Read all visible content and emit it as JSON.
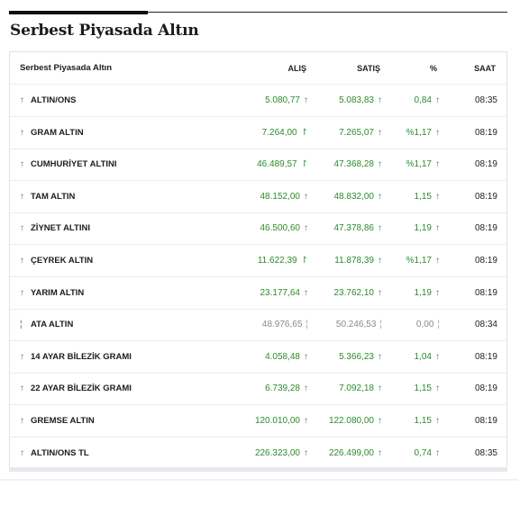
{
  "section": {
    "title": "Serbest Piyasada Altın"
  },
  "table": {
    "headers": {
      "name": "Serbest Piyasada Altın",
      "buy": "ALIŞ",
      "sell": "SATIŞ",
      "pct": "%",
      "time": "SAAT"
    },
    "rows": [
      {
        "name": "ALTIN/ONS",
        "buy": "5.080,77",
        "sell": "5.083,83",
        "pct": "0,84",
        "time": "08:35",
        "trend": "up",
        "trend_icon": "arrow-up-icon",
        "buy_icon": "arrow-up-icon"
      },
      {
        "name": "GRAM ALTIN",
        "buy": "7.264,00",
        "sell": "7.265,07",
        "pct": "%1,17",
        "time": "08:19",
        "trend": "up",
        "trend_icon": "arrow-up-icon",
        "buy_icon": "thin-arrow-up-icon"
      },
      {
        "name": "CUMHURİYET ALTINI",
        "buy": "46.489,57",
        "sell": "47.368,28",
        "pct": "%1,17",
        "time": "08:19",
        "trend": "up",
        "trend_icon": "arrow-up-icon",
        "buy_icon": "thin-arrow-up-icon"
      },
      {
        "name": "TAM ALTIN",
        "buy": "48.152,00",
        "sell": "48.832,00",
        "pct": "1,15",
        "time": "08:19",
        "trend": "up",
        "trend_icon": "arrow-up-icon",
        "buy_icon": "arrow-up-icon"
      },
      {
        "name": "ZİYNET ALTINI",
        "buy": "46.500,60",
        "sell": "47.378,86",
        "pct": "1,19",
        "time": "08:19",
        "trend": "up",
        "trend_icon": "arrow-up-icon",
        "buy_icon": "arrow-up-icon"
      },
      {
        "name": "ÇEYREK ALTIN",
        "buy": "11.622,39",
        "sell": "11.878,39",
        "pct": "%1,17",
        "time": "08:19",
        "trend": "up",
        "trend_icon": "arrow-up-icon",
        "buy_icon": "thin-arrow-up-icon"
      },
      {
        "name": "YARIM ALTIN",
        "buy": "23.177,64",
        "sell": "23.762,10",
        "pct": "1,19",
        "time": "08:19",
        "trend": "up",
        "trend_icon": "arrow-up-icon",
        "buy_icon": "arrow-up-icon"
      },
      {
        "name": "ATA ALTIN",
        "buy": "48.976,65",
        "sell": "50.246,53",
        "pct": "0,00",
        "time": "08:34",
        "trend": "flat",
        "trend_icon": "neutral-bar-icon",
        "buy_icon": "neutral-bar-icon"
      },
      {
        "name": "14 AYAR BİLEZİK GRAMI",
        "buy": "4.058,48",
        "sell": "5.366,23",
        "pct": "1,04",
        "time": "08:19",
        "trend": "up",
        "trend_icon": "arrow-up-icon",
        "buy_icon": "arrow-up-icon"
      },
      {
        "name": "22 AYAR BİLEZİK GRAMI",
        "buy": "6.739,28",
        "sell": "7.092,18",
        "pct": "1,15",
        "time": "08:19",
        "trend": "up",
        "trend_icon": "arrow-up-icon",
        "buy_icon": "arrow-up-icon"
      },
      {
        "name": "GREMSE ALTIN",
        "buy": "120.010,00",
        "sell": "122.080,00",
        "pct": "1,15",
        "time": "08:19",
        "trend": "up",
        "trend_icon": "arrow-up-icon",
        "buy_icon": "arrow-up-icon"
      },
      {
        "name": "ALTIN/ONS TL",
        "buy": "226.323,00",
        "sell": "226.499,00",
        "pct": "0,74",
        "time": "08:35",
        "trend": "up",
        "trend_icon": "arrow-up-icon",
        "buy_icon": "arrow-up-icon"
      }
    ]
  },
  "colors": {
    "up": "#2c8b2c",
    "flat": "#8a8a8a",
    "accent_rule": "#111111"
  }
}
